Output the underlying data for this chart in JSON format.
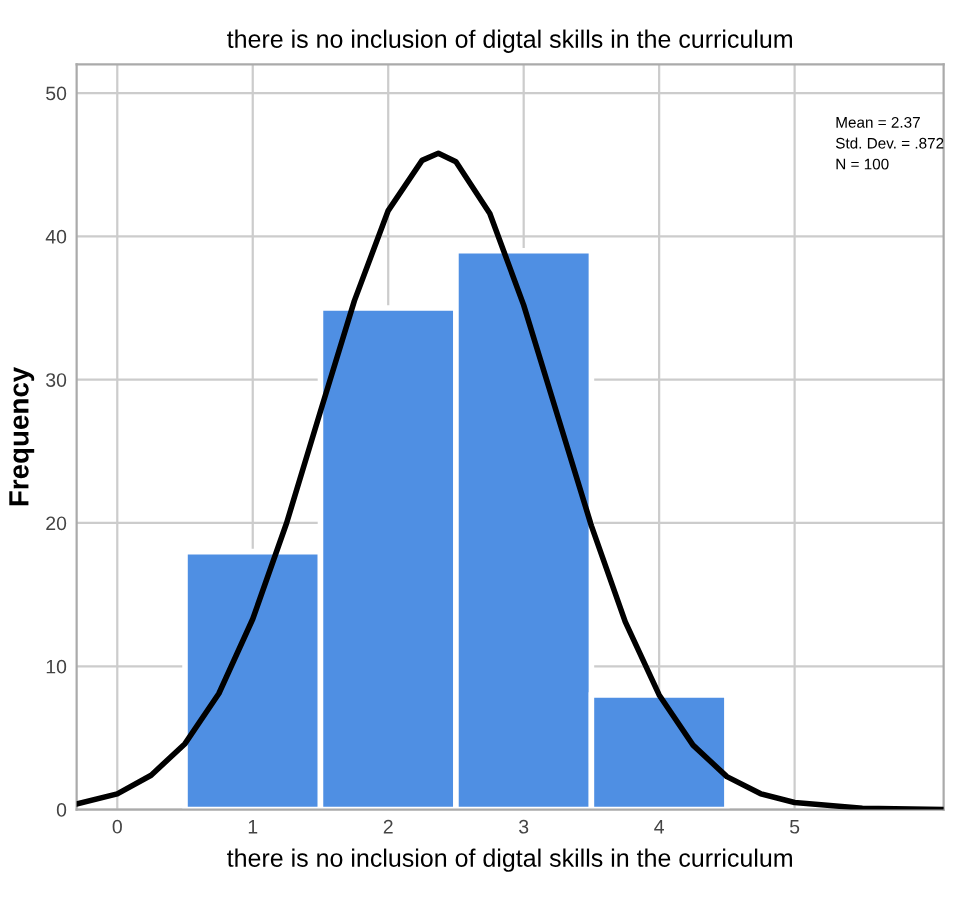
{
  "chart_data": {
    "type": "histogram",
    "title": "there is no inclusion of digtal skills in the curriculum",
    "xlabel": "there is no inclusion of digtal skills in the curriculum",
    "ylabel": "Frequency",
    "series": [
      {
        "color": "#4f8fe3",
        "bins": [
          0.5,
          1.5,
          2.5,
          3.5,
          4.5
        ],
        "values": [
          18,
          35,
          39,
          8
        ]
      },
      {
        "type": "line",
        "color": "#000000",
        "x": [
          -0.3,
          0,
          0.25,
          0.5,
          0.75,
          1,
          1.25,
          1.5,
          1.75,
          2,
          2.25,
          2.37,
          2.5,
          2.75,
          3,
          3.25,
          3.5,
          3.75,
          4,
          4.25,
          4.5,
          4.75,
          5,
          5.5,
          6.1
        ],
        "values": [
          0.4,
          1.1,
          2.4,
          4.6,
          8.1,
          13.3,
          20.0,
          27.8,
          35.5,
          41.8,
          45.3,
          45.8,
          45.2,
          41.6,
          35.2,
          27.5,
          19.8,
          13.1,
          8.0,
          4.5,
          2.3,
          1.1,
          0.5,
          0.1,
          0.0
        ]
      }
    ],
    "annotations": [
      "Mean = 2.37",
      "Std. Dev. = .872",
      "N = 100"
    ],
    "xlim": [
      -0.3,
      6.1
    ],
    "ylim": [
      0,
      52
    ],
    "xticks": [
      0,
      1,
      2,
      3,
      4,
      5
    ],
    "yticks": [
      0,
      10,
      20,
      30,
      40,
      50
    ],
    "grid": true,
    "legend": false
  }
}
